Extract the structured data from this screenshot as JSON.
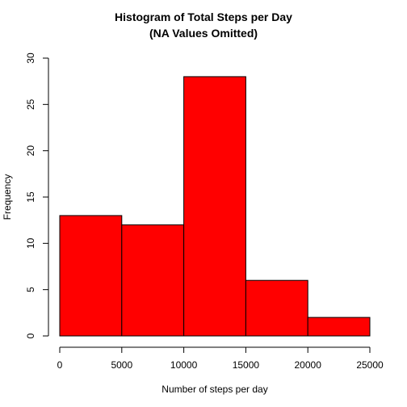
{
  "chart_data": {
    "type": "bar",
    "title": "Histogram of Total Steps per Day",
    "subtitle": "(NA Values Omitted)",
    "xlabel": "Number of steps per day",
    "ylabel": "Frequency",
    "bins": [
      {
        "from": 0,
        "to": 5000,
        "count": 13
      },
      {
        "from": 5000,
        "to": 10000,
        "count": 12
      },
      {
        "from": 10000,
        "to": 15000,
        "count": 28
      },
      {
        "from": 15000,
        "to": 20000,
        "count": 6
      },
      {
        "from": 20000,
        "to": 25000,
        "count": 2
      }
    ],
    "xlim": [
      0,
      25000
    ],
    "ylim": [
      0,
      30
    ],
    "x_ticks": [
      0,
      5000,
      10000,
      15000,
      20000,
      25000
    ],
    "x_tick_labels": [
      "0",
      "5000",
      "10000",
      "15000",
      "20000",
      "25000"
    ],
    "y_ticks": [
      0,
      5,
      10,
      15,
      20,
      25,
      30
    ],
    "y_tick_labels": [
      "0",
      "5",
      "10",
      "15",
      "20",
      "25",
      "30"
    ],
    "bar_color": "#ff0000",
    "border_color": "#000000",
    "grid": false,
    "legend": "none"
  }
}
